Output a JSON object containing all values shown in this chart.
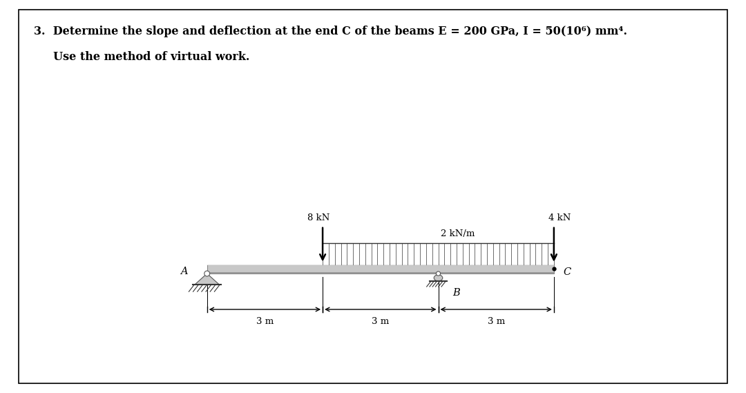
{
  "title_line1": "3.  Determine the slope and deflection at the end C of the beams E = 200 GPa, I = 50(10⁶) mm⁴.",
  "title_line2": "     Use the method of virtual work.",
  "bg_color": "#ffffff",
  "box_color": "#000000",
  "dist_load_label": "2 kN/m",
  "load_8kN_label": "8 kN",
  "load_4kN_label": "4 kN",
  "label_A": "A",
  "label_B": "B",
  "label_C": "C",
  "dim_labels": [
    "3 m",
    "3 m",
    "3 m"
  ],
  "text_color": "#000000",
  "beam_face_color": "#c8c8c8",
  "beam_top_color": "#e8e8e8",
  "beam_bot_color": "#999999",
  "support_face_color": "#c8c8c8",
  "dist_line_color": "#555555",
  "font_size_title": 11.5,
  "font_size_labels": 9.5
}
